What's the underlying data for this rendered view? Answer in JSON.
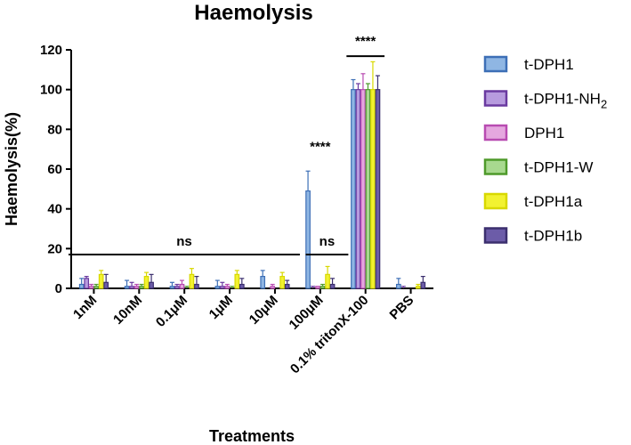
{
  "chart_data": {
    "type": "bar",
    "title": "Haemolysis",
    "xlabel": "Treatments",
    "ylabel": "Haemolysis(%)",
    "ylim": [
      0,
      120
    ],
    "yticks": [
      0,
      20,
      40,
      60,
      80,
      100,
      120
    ],
    "categories": [
      "1nM",
      "10nM",
      "0.1μM",
      "1μM",
      "10μM",
      "100μM",
      "0.1% tritonX-100",
      "PBS"
    ],
    "series": [
      {
        "name": "t-DPH1",
        "name_main": "t-DPH1",
        "name_sub": "",
        "color": "#3d6fb6",
        "fill": "#8fb6e3",
        "values": [
          2,
          1,
          1,
          1,
          6,
          49,
          100,
          2
        ],
        "errors": [
          3,
          3,
          2,
          3,
          3,
          10,
          5,
          3
        ]
      },
      {
        "name": "t-DPH1-NH2",
        "name_main": "t-DPH1-NH",
        "name_sub": "2",
        "color": "#6a3aa0",
        "fill": "#b79bde",
        "values": [
          5,
          1,
          1,
          1,
          0,
          0,
          100,
          0
        ],
        "errors": [
          1,
          2,
          1,
          2,
          0,
          1,
          3,
          1
        ]
      },
      {
        "name": "DPH1",
        "name_main": "DPH1",
        "name_sub": "",
        "color": "#b84bb1",
        "fill": "#e5a7df",
        "values": [
          1,
          1,
          2,
          1,
          1,
          1,
          100,
          0
        ],
        "errors": [
          1,
          1,
          2,
          1,
          1,
          0,
          8,
          0
        ]
      },
      {
        "name": "t-DPH1-W",
        "name_main": "t-DPH1-W",
        "name_sub": "",
        "color": "#4e9a2a",
        "fill": "#a8d98f",
        "values": [
          1,
          1,
          0,
          0,
          0,
          1,
          100,
          0
        ],
        "errors": [
          1,
          1,
          1,
          1,
          0,
          1,
          3,
          0
        ]
      },
      {
        "name": "t-DPH1a",
        "name_main": "t-DPH1a",
        "name_sub": "",
        "color": "#d8d800",
        "fill": "#f2f230",
        "values": [
          7,
          6,
          7,
          7,
          6,
          7,
          100,
          1
        ],
        "errors": [
          2,
          2,
          3,
          2,
          2,
          4,
          14,
          1
        ]
      },
      {
        "name": "t-DPH1b",
        "name_main": "t-DPH1b",
        "name_sub": "",
        "color": "#3b2f6e",
        "fill": "#6c5ca8",
        "values": [
          3,
          3,
          2,
          2,
          2,
          2,
          100,
          3
        ],
        "errors": [
          4,
          4,
          4,
          3,
          2,
          3,
          7,
          3
        ]
      }
    ],
    "annotations": [
      {
        "text": "ns",
        "from_category": 0,
        "to_category": 5,
        "y": 17
      },
      {
        "text": "ns",
        "from_category": 5,
        "to_category": 5,
        "y": 17
      },
      {
        "text": "****",
        "category": 5,
        "y": 62
      },
      {
        "text": "****",
        "category": 6,
        "y": 115
      }
    ],
    "legend_position": "right"
  }
}
